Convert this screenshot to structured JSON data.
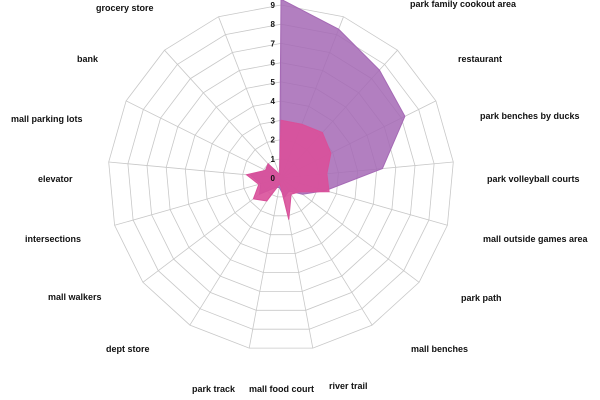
{
  "chart_data": {
    "type": "radar",
    "categories": [
      "park family cookout area",
      "restaurant",
      "park benches by ducks",
      "park volleyball courts",
      "mall outside games area",
      "park path",
      "mall benches",
      "river trail",
      "mall food court",
      "park track",
      "dept store",
      "mall walkers",
      "intersections",
      "elevator",
      "mall parking lots",
      "bank",
      "grocery store"
    ],
    "radial_ticks": [
      "0",
      "1",
      "2",
      "3",
      "4",
      "5",
      "6",
      "7",
      "8",
      "9"
    ],
    "rmax": 9,
    "grid": true,
    "legend": "none",
    "series": [
      {
        "color": "#a569b5",
        "values": [
          9.3,
          8.3,
          7.6,
          7.2,
          5.3,
          2.4,
          1.4,
          0.8,
          1.0,
          0.5,
          0.6,
          1.4,
          1.1,
          1.6,
          0.9,
          1.0,
          0.2
        ]
      },
      {
        "color": "#d9509a",
        "values": [
          3.0,
          3.0,
          3.2,
          2.9,
          2.4,
          2.6,
          1.2,
          1.0,
          2.2,
          0.3,
          1.4,
          1.8,
          1.2,
          1.8,
          0.9,
          1.0,
          0.2
        ]
      }
    ]
  }
}
